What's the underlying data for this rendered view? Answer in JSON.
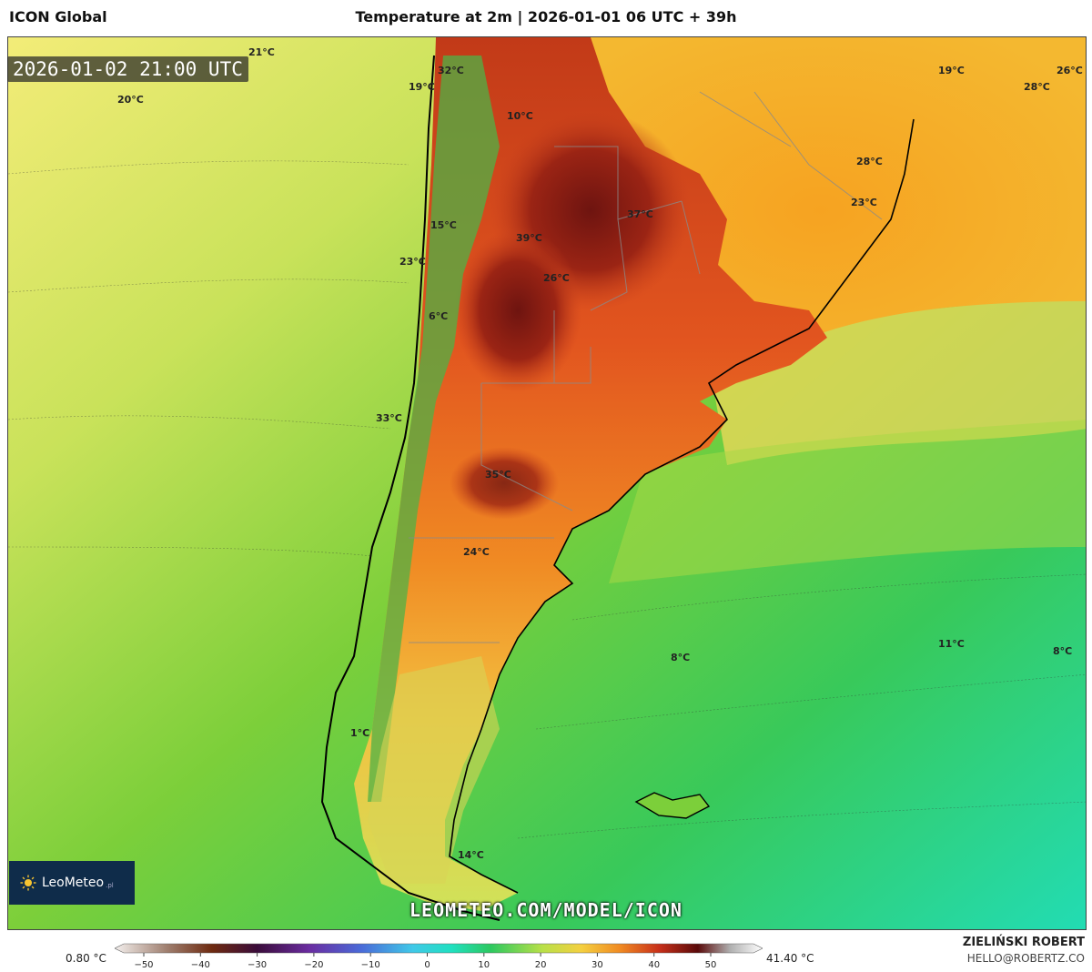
{
  "header": {
    "model": "ICON Global",
    "title": "Temperature at 2m | 2026-01-01 06 UTC + 39h"
  },
  "valid_time": "2026-01-02 21:00 UTC",
  "map_labels": [
    {
      "text": "21°C"
    },
    {
      "text": "20°C"
    },
    {
      "text": "32°C"
    },
    {
      "text": "19°C"
    },
    {
      "text": "10°C"
    },
    {
      "text": "19°C"
    },
    {
      "text": "26°C"
    },
    {
      "text": "28°C"
    },
    {
      "text": "28°C"
    },
    {
      "text": "23°C"
    },
    {
      "text": "37°C"
    },
    {
      "text": "15°C"
    },
    {
      "text": "39°C"
    },
    {
      "text": "23°C"
    },
    {
      "text": "26°C"
    },
    {
      "text": "6°C"
    },
    {
      "text": "33°C"
    },
    {
      "text": "35°C"
    },
    {
      "text": "24°C"
    },
    {
      "text": "8°C"
    },
    {
      "text": "11°C"
    },
    {
      "text": "8°C"
    },
    {
      "text": "1°C"
    },
    {
      "text": "14°C"
    }
  ],
  "branding": {
    "logo_text": "LeoMeteo",
    "logo_suffix": ".pl",
    "url": "LEOMETEO.COM/MODEL/ICON"
  },
  "colorbar": {
    "min_label": "0.80 °C",
    "max_label": "41.40 °C",
    "ticks": [
      "−50",
      "−40",
      "−30",
      "−20",
      "−10",
      "0",
      "10",
      "20",
      "30",
      "40",
      "50"
    ]
  },
  "author": {
    "name": "ZIELIŃSKI ROBERT",
    "email": "HELLO@ROBERTZ.CO"
  },
  "colors": {
    "ocean_warm": "#f2e76a",
    "ocean_mid": "#7fcf3a",
    "ocean_cool": "#22d6a0",
    "land_hot": "#e0521e",
    "land_very_hot": "#8a1a14",
    "land_warm": "#f5a224",
    "andes_cool": "#5ab845",
    "coast": "#000000",
    "border": "#999999"
  }
}
